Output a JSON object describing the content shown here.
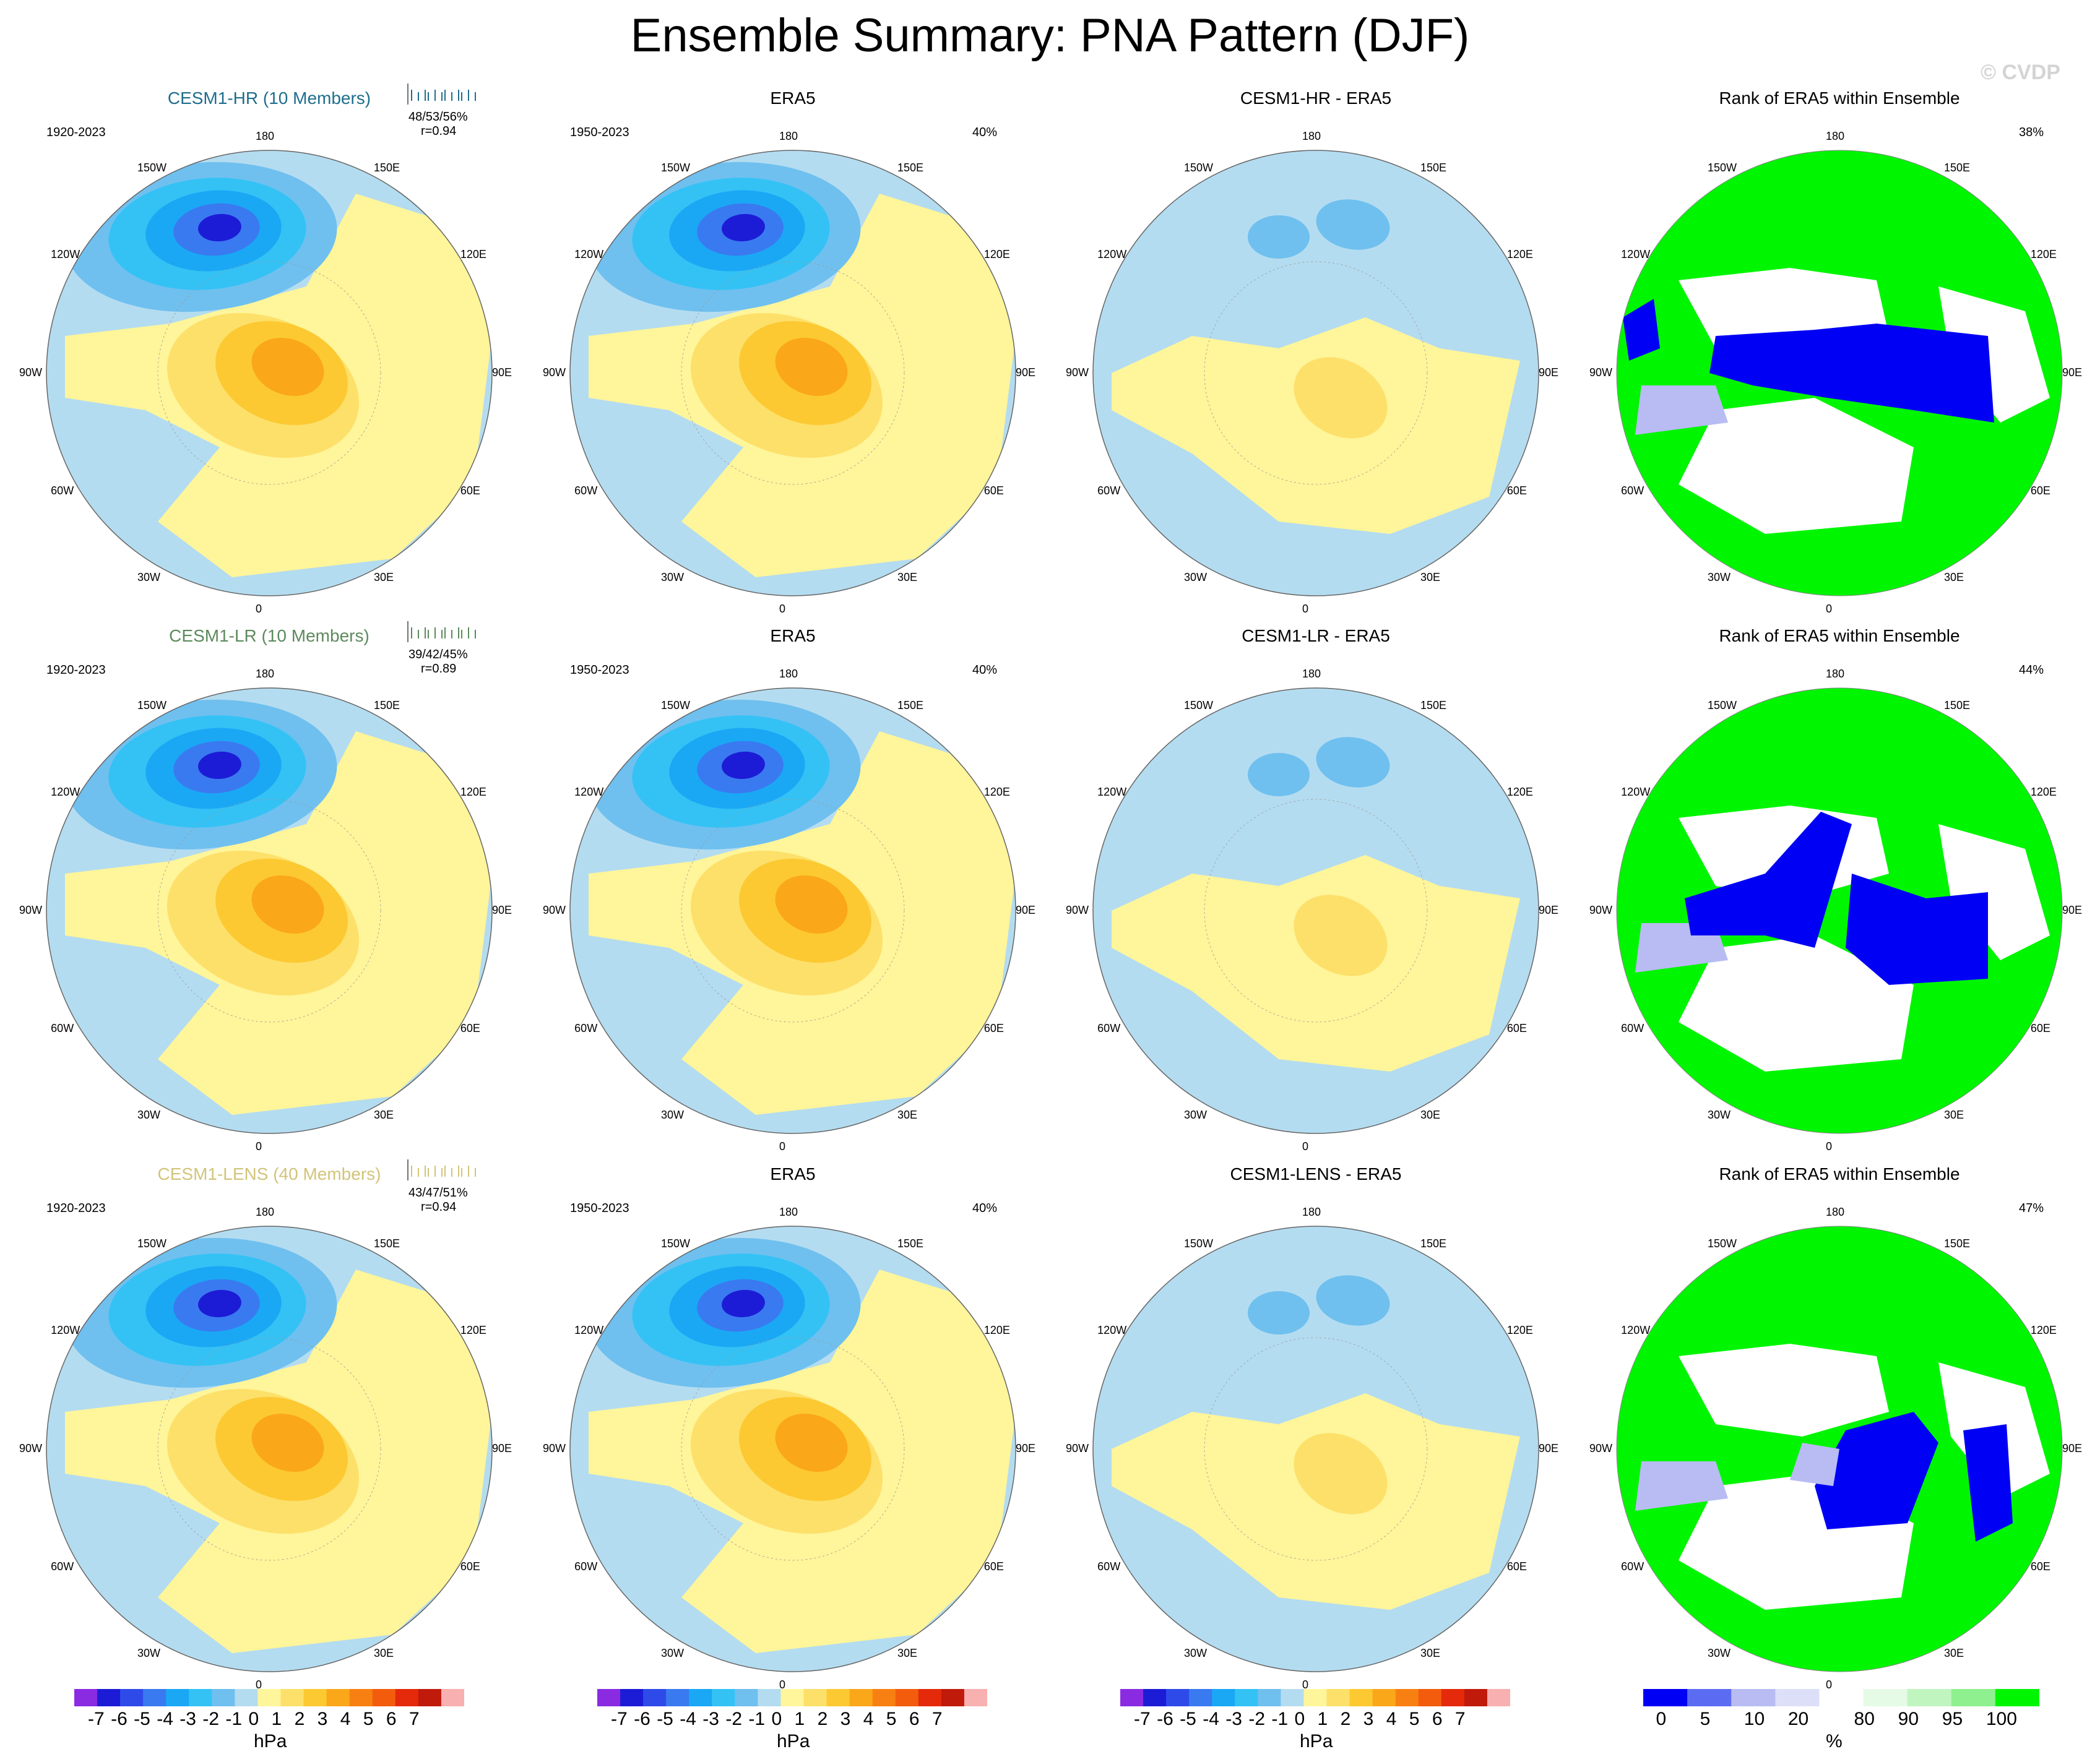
{
  "title": "Ensemble Summary: PNA Pattern (DJF)",
  "watermark": "© CVDP",
  "colors": {
    "neg7": "#8a2be2",
    "neg6": "#1c1cd6",
    "neg5": "#2e4bea",
    "neg4": "#3a7af0",
    "neg3": "#1aa8f5",
    "neg2": "#34c2f5",
    "neg1": "#6fc0ef",
    "neg0": "#b4dcf0",
    "pos0": "#fff59a",
    "pos1": "#fde06a",
    "pos2": "#fcc932",
    "pos3": "#fba71a",
    "pos4": "#f88012",
    "pos5": "#f25c0c",
    "pos6": "#e42a0a",
    "pos7": "#c01a0a",
    "pos8": "#f8b0b0",
    "rank_blue": "#0000f5",
    "rank_blue2": "#5c6cf2",
    "rank_lav": "#b8bcf2",
    "rank_lightlav": "#dcdff7",
    "rank_white": "#ffffff",
    "rank_pale": "#e6fbe6",
    "rank_light": "#c0f5c0",
    "rank_mid": "#8ef08e",
    "rank_green": "#00f500"
  },
  "rows": [
    {
      "model_title": "CESM1-HR (10 Members)",
      "model_color": "#1f6e8c",
      "model_years": "1920-2023",
      "stats": "48/53/56%",
      "corr": "r=0.94",
      "obs_title": "ERA5",
      "obs_years": "1950-2023",
      "obs_pct": "40%",
      "diff_title": "CESM1-HR - ERA5",
      "rank_title": "Rank of ERA5 within Ensemble",
      "rank_pct": "38%"
    },
    {
      "model_title": "CESM1-LR (10 Members)",
      "model_color": "#5c8a5c",
      "model_years": "1920-2023",
      "stats": "39/42/45%",
      "corr": "r=0.89",
      "obs_title": "ERA5",
      "obs_years": "1950-2023",
      "obs_pct": "40%",
      "diff_title": "CESM1-LR - ERA5",
      "rank_title": "Rank of ERA5 within Ensemble",
      "rank_pct": "44%"
    },
    {
      "model_title": "CESM1-LENS (40 Members)",
      "model_color": "#d2c47a",
      "model_years": "1920-2023",
      "stats": "43/47/51%",
      "corr": "r=0.94",
      "obs_title": "ERA5",
      "obs_years": "1950-2023",
      "obs_pct": "40%",
      "diff_title": "CESM1-LENS - ERA5",
      "rank_title": "Rank of ERA5 within Ensemble",
      "rank_pct": "47%"
    }
  ],
  "lon_labels": [
    "180",
    "150E",
    "120E",
    "90E",
    "60E",
    "30E",
    "0",
    "30W",
    "60W",
    "90W",
    "120W",
    "150W"
  ],
  "colorbar_hpa": {
    "ticks": [
      "-7",
      "-6",
      "-5",
      "-4",
      "-3",
      "-2",
      "-1",
      "0",
      "1",
      "2",
      "3",
      "4",
      "5",
      "6",
      "7"
    ],
    "unit": "hPa"
  },
  "colorbar_rank": {
    "ticks": [
      "0",
      "5",
      "10",
      "20",
      "80",
      "90",
      "95",
      "100"
    ],
    "unit": "%"
  }
}
